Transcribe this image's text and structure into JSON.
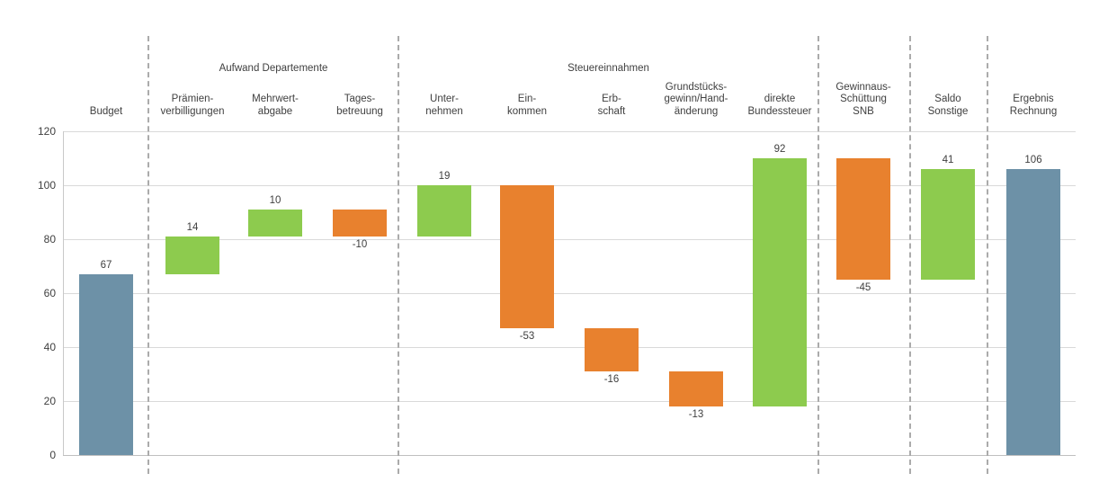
{
  "chart_data": {
    "type": "waterfall",
    "title": "",
    "xlabel": "",
    "ylabel": "",
    "ylim": [
      0,
      120
    ],
    "yticks": [
      0,
      20,
      40,
      60,
      80,
      100,
      120
    ],
    "grid": true,
    "legend": "none",
    "colors": {
      "total_bar": "#6D91A7",
      "increase_bar": "#8DCB4E",
      "decrease_bar": "#E8812E",
      "gridline": "#D9D9D9",
      "baseline": "#C0C0C0",
      "axis_line": "#C9C9C9",
      "separator": "#ABABAB",
      "text": "#404040"
    },
    "groups": [
      {
        "label": "",
        "items": [
          {
            "label_lines": [
              "Budget"
            ],
            "value": 67,
            "kind": "total",
            "value_label": "67"
          }
        ]
      },
      {
        "label": "Aufwand Departemente",
        "items": [
          {
            "label_lines": [
              "Prämien-",
              "verbilligungen"
            ],
            "value": 14,
            "kind": "delta",
            "value_label": "14"
          },
          {
            "label_lines": [
              "Mehrwert-",
              "abgabe"
            ],
            "value": 10,
            "kind": "delta",
            "value_label": "10"
          },
          {
            "label_lines": [
              "Tages-",
              "betreuung"
            ],
            "value": -10,
            "kind": "delta",
            "value_label": "-10"
          }
        ]
      },
      {
        "label": "Steuereinnahmen",
        "items": [
          {
            "label_lines": [
              "Unter-",
              "nehmen"
            ],
            "value": 19,
            "kind": "delta",
            "value_label": "19"
          },
          {
            "label_lines": [
              "Ein-",
              "kommen"
            ],
            "value": -53,
            "kind": "delta",
            "value_label": "-53"
          },
          {
            "label_lines": [
              "Erb-",
              "schaft"
            ],
            "value": -16,
            "kind": "delta",
            "value_label": "-16"
          },
          {
            "label_lines": [
              "Grundstücks-",
              "gewinn/Hand-",
              "änderung"
            ],
            "value": -13,
            "kind": "delta",
            "value_label": "-13"
          },
          {
            "label_lines": [
              "direkte",
              "Bundessteuer"
            ],
            "value": 92,
            "kind": "delta",
            "value_label": "92"
          }
        ]
      },
      {
        "label": "",
        "items": [
          {
            "label_lines": [
              "Gewinnaus-",
              "Schüttung",
              "SNB"
            ],
            "value": -45,
            "kind": "delta",
            "value_label": "-45"
          }
        ]
      },
      {
        "label": "",
        "items": [
          {
            "label_lines": [
              "Saldo",
              "Sonstige"
            ],
            "value": 41,
            "kind": "delta",
            "value_label": "41"
          }
        ]
      },
      {
        "label": "",
        "items": [
          {
            "label_lines": [
              "Ergebnis",
              "Rechnung"
            ],
            "value": 106,
            "kind": "total",
            "value_label": "106"
          }
        ]
      }
    ]
  }
}
